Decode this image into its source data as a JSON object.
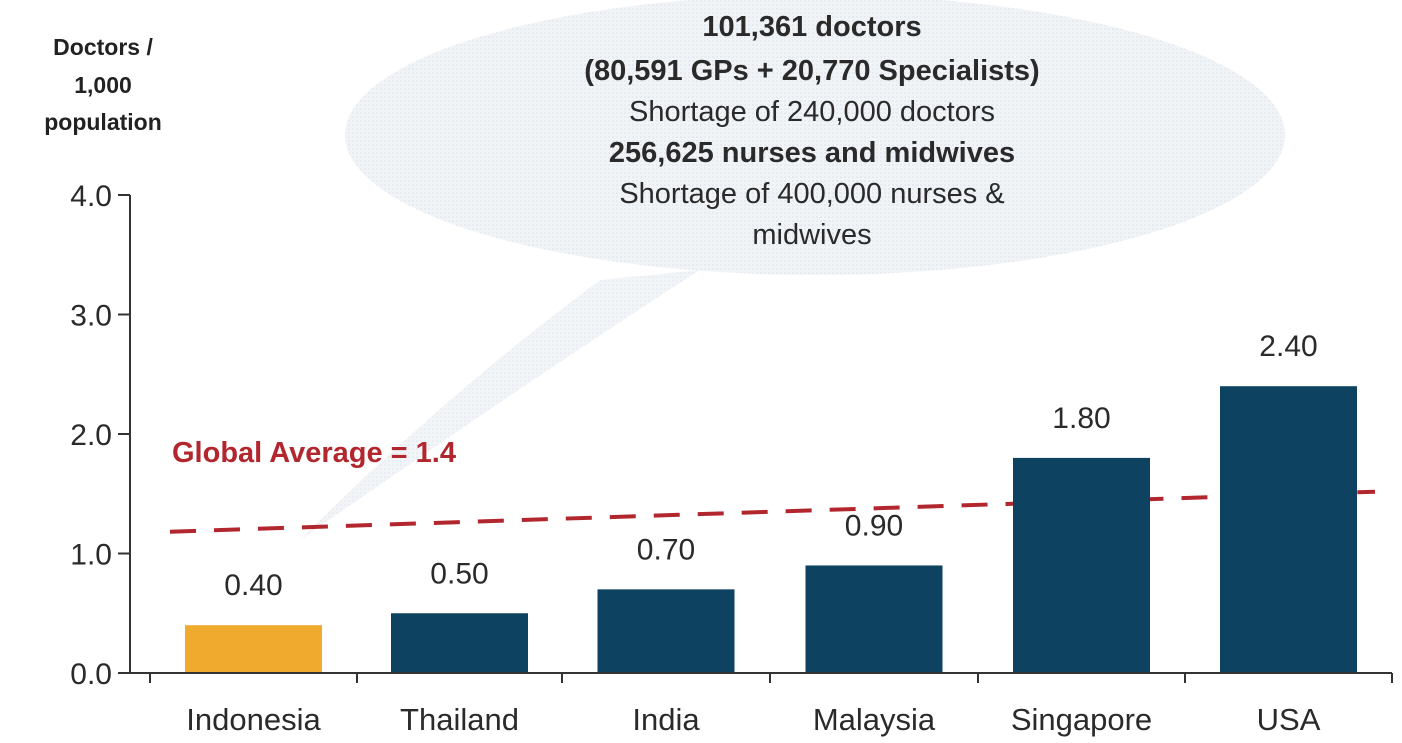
{
  "chart_data": {
    "type": "bar",
    "ylabel_lines": [
      "Doctors /",
      "1,000",
      "population"
    ],
    "categories": [
      "Indonesia",
      "Thailand",
      "India",
      "Malaysia",
      "Singapore",
      "USA"
    ],
    "values": [
      0.4,
      0.5,
      0.7,
      0.9,
      1.8,
      2.4
    ],
    "value_labels": [
      "0.40",
      "0.50",
      "0.70",
      "0.90",
      "1.80",
      "2.40"
    ],
    "highlight_index": 0,
    "ylim": [
      0,
      4
    ],
    "yticks": [
      0,
      1,
      2,
      3,
      4
    ],
    "ytick_labels": [
      "0.0",
      "1.0",
      "2.0",
      "3.0",
      "4.0"
    ],
    "grid": false,
    "colors": {
      "bar": "#0d4360",
      "highlight": "#f0aa2e",
      "reference_line": "#b2262e",
      "callout_bg": "#e9eef4"
    },
    "reference_line": {
      "value": 1.4,
      "label": "Global Average = 1.4"
    },
    "callout": {
      "lines": [
        {
          "text": "101,361 doctors",
          "bold": true
        },
        {
          "text": "(80,591 GPs + 20,770 Specialists)",
          "bold": true
        },
        {
          "text": "Shortage of 240,000 doctors",
          "bold": false
        },
        {
          "text": "256,625 nurses and midwives",
          "bold": true
        },
        {
          "text": "Shortage of 400,000 nurses &",
          "bold": false
        },
        {
          "text": "midwives",
          "bold": false
        }
      ]
    }
  }
}
